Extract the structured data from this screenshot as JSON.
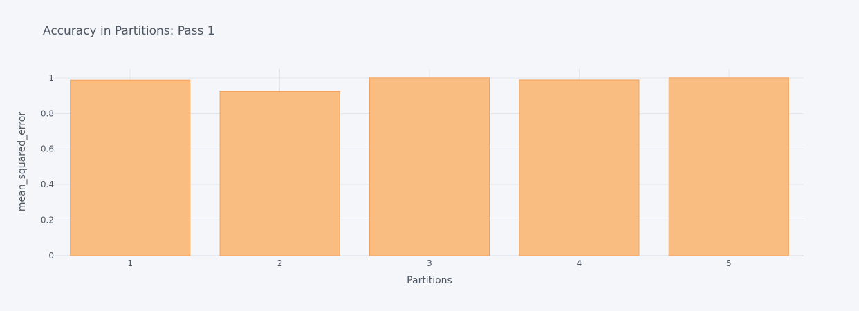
{
  "chart_data": {
    "type": "bar",
    "title": "Accuracy in Partitions: Pass 1",
    "xlabel": "Partitions",
    "ylabel": "mean_squared_error",
    "categories": [
      "1",
      "2",
      "3",
      "4",
      "5"
    ],
    "values": [
      0.987,
      0.924,
      1.0,
      0.988,
      1.0
    ],
    "ylim": [
      0,
      1.05
    ],
    "yticks": [
      0,
      0.2,
      0.4,
      0.6,
      0.8,
      1
    ],
    "ytick_labels": [
      "0",
      "0.2",
      "0.4",
      "0.6",
      "0.8",
      "1"
    ],
    "grid": true,
    "legend": false,
    "colors": {
      "bar_fill": "#f9bc81",
      "bar_stroke": "#f2a15a",
      "background": "#f5f6f9",
      "grid": "#e1e5ed",
      "text": "#4d5663"
    }
  }
}
